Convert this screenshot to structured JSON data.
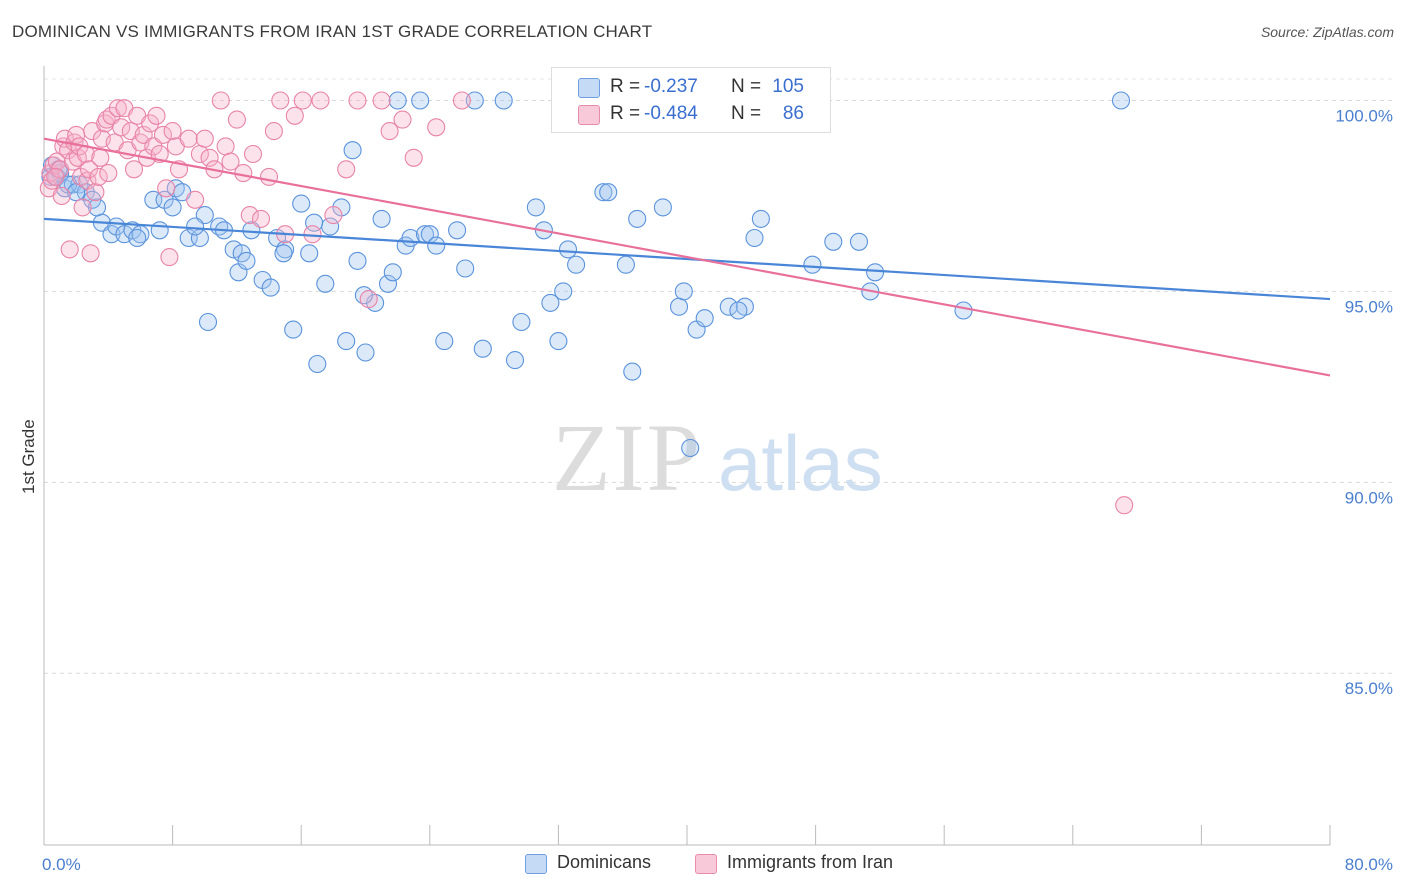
{
  "header": {
    "title": "DOMINICAN VS IMMIGRANTS FROM IRAN 1ST GRADE CORRELATION CHART",
    "source": "Source: ZipAtlas.com"
  },
  "watermark": {
    "zip": "ZIP",
    "atlas": "atlas"
  },
  "legend_top": {
    "rows": [
      {
        "r_label": "R =",
        "r_value": "-0.237",
        "n_label": "N =",
        "n_value": "105"
      },
      {
        "r_label": "R =",
        "r_value": "-0.484",
        "n_label": "N =",
        "n_value": "86"
      }
    ]
  },
  "legend_bottom": {
    "items": [
      "Dominicans",
      "Immigrants from Iran"
    ]
  },
  "chart_data": {
    "type": "scatter",
    "ylabel": "1st Grade",
    "xlim": [
      0,
      80
    ],
    "ylim": [
      80.5,
      100.8
    ],
    "x_tick_labels": [
      "0.0%",
      "80.0%"
    ],
    "y_ticks": [
      {
        "value": 100,
        "label": "100.0%"
      },
      {
        "value": 95,
        "label": "95.0%"
      },
      {
        "value": 90,
        "label": "90.0%"
      },
      {
        "value": 85,
        "label": "85.0%"
      }
    ],
    "grid": "horizontal-dashed",
    "colors": {
      "dominicans": "#4a86d8",
      "iran": "#e8709a"
    },
    "series": [
      {
        "name": "Dominicans",
        "color": "#4a86d8",
        "trend": {
          "x": [
            0,
            80
          ],
          "y": [
            96.9,
            94.8
          ]
        },
        "points": [
          [
            0.5,
            98.3
          ],
          [
            0.8,
            98.0
          ],
          [
            1.0,
            98.1
          ],
          [
            1.3,
            97.7
          ],
          [
            1.8,
            97.8
          ],
          [
            2.2,
            97.8
          ],
          [
            2.6,
            97.6
          ],
          [
            3.0,
            97.4
          ],
          [
            3.6,
            96.8
          ],
          [
            4.2,
            96.5
          ],
          [
            4.5,
            96.7
          ],
          [
            5.0,
            96.5
          ],
          [
            5.5,
            96.6
          ],
          [
            6.0,
            96.5
          ],
          [
            6.8,
            97.4
          ],
          [
            7.2,
            96.6
          ],
          [
            7.5,
            97.4
          ],
          [
            8.0,
            97.2
          ],
          [
            8.2,
            97.7
          ],
          [
            8.6,
            97.6
          ],
          [
            9.0,
            96.4
          ],
          [
            9.7,
            96.4
          ],
          [
            10.0,
            97.0
          ],
          [
            10.2,
            94.2
          ],
          [
            10.9,
            96.7
          ],
          [
            11.2,
            96.6
          ],
          [
            11.8,
            96.1
          ],
          [
            12.1,
            95.5
          ],
          [
            12.3,
            96.0
          ],
          [
            12.9,
            96.6
          ],
          [
            13.6,
            95.3
          ],
          [
            14.1,
            95.1
          ],
          [
            14.5,
            96.4
          ],
          [
            15.0,
            96.1
          ],
          [
            15.5,
            94.0
          ],
          [
            16.0,
            97.3
          ],
          [
            16.5,
            96.0
          ],
          [
            17.0,
            93.1
          ],
          [
            17.5,
            95.2
          ],
          [
            17.8,
            96.7
          ],
          [
            18.5,
            97.2
          ],
          [
            18.8,
            93.7
          ],
          [
            19.2,
            98.7
          ],
          [
            19.5,
            95.8
          ],
          [
            20.0,
            93.4
          ],
          [
            20.6,
            94.7
          ],
          [
            21.0,
            96.9
          ],
          [
            21.4,
            95.2
          ],
          [
            21.7,
            95.5
          ],
          [
            22.0,
            100.0
          ],
          [
            22.5,
            96.2
          ],
          [
            22.8,
            96.4
          ],
          [
            23.4,
            100.0
          ],
          [
            23.7,
            96.5
          ],
          [
            24.0,
            96.5
          ],
          [
            24.9,
            93.7
          ],
          [
            25.7,
            96.6
          ],
          [
            26.2,
            95.6
          ],
          [
            26.8,
            100.0
          ],
          [
            27.3,
            93.5
          ],
          [
            28.6,
            100.0
          ],
          [
            29.3,
            93.2
          ],
          [
            29.7,
            94.2
          ],
          [
            30.6,
            97.2
          ],
          [
            31.1,
            96.6
          ],
          [
            32.0,
            93.7
          ],
          [
            32.3,
            95.0
          ],
          [
            32.6,
            96.1
          ],
          [
            33.1,
            95.7
          ],
          [
            34.8,
            97.6
          ],
          [
            35.1,
            97.6
          ],
          [
            36.2,
            95.7
          ],
          [
            36.6,
            92.9
          ],
          [
            36.9,
            96.9
          ],
          [
            38.5,
            97.2
          ],
          [
            39.5,
            94.6
          ],
          [
            39.8,
            95.0
          ],
          [
            40.2,
            90.9
          ],
          [
            40.6,
            94.0
          ],
          [
            41.1,
            94.3
          ],
          [
            42.6,
            94.6
          ],
          [
            43.6,
            94.6
          ],
          [
            44.2,
            96.4
          ],
          [
            44.6,
            96.9
          ],
          [
            47.8,
            95.7
          ],
          [
            49.1,
            96.3
          ],
          [
            50.7,
            96.3
          ],
          [
            51.4,
            95.0
          ],
          [
            51.7,
            95.5
          ],
          [
            57.2,
            94.5
          ],
          [
            67.0,
            100.0
          ],
          [
            0.4,
            98.0
          ],
          [
            0.9,
            98.2
          ],
          [
            1.5,
            97.8
          ],
          [
            2.0,
            97.6
          ],
          [
            3.3,
            97.2
          ],
          [
            5.8,
            96.4
          ],
          [
            9.4,
            96.7
          ],
          [
            12.6,
            95.8
          ],
          [
            14.9,
            96.0
          ],
          [
            16.8,
            96.8
          ],
          [
            19.9,
            94.9
          ],
          [
            24.4,
            96.2
          ],
          [
            31.5,
            94.7
          ],
          [
            43.2,
            94.5
          ]
        ]
      },
      {
        "name": "Immigrants from Iran",
        "color": "#e8709a",
        "trend": {
          "x": [
            0,
            80
          ],
          "y": [
            99.0,
            92.8
          ]
        },
        "points": [
          [
            0.3,
            97.7
          ],
          [
            0.4,
            98.1
          ],
          [
            0.5,
            97.9
          ],
          [
            0.6,
            98.3
          ],
          [
            0.8,
            98.4
          ],
          [
            1.0,
            98.2
          ],
          [
            1.1,
            97.5
          ],
          [
            1.2,
            98.8
          ],
          [
            1.3,
            99.0
          ],
          [
            1.5,
            98.7
          ],
          [
            1.6,
            96.1
          ],
          [
            1.8,
            98.4
          ],
          [
            1.9,
            98.9
          ],
          [
            2.0,
            99.1
          ],
          [
            2.1,
            98.5
          ],
          [
            2.2,
            98.8
          ],
          [
            2.3,
            98.0
          ],
          [
            2.4,
            97.2
          ],
          [
            2.6,
            98.6
          ],
          [
            2.7,
            97.9
          ],
          [
            2.8,
            98.2
          ],
          [
            2.9,
            96.0
          ],
          [
            3.0,
            99.2
          ],
          [
            3.2,
            97.6
          ],
          [
            3.4,
            98.0
          ],
          [
            3.5,
            98.5
          ],
          [
            3.6,
            99.0
          ],
          [
            3.8,
            99.4
          ],
          [
            3.9,
            99.5
          ],
          [
            4.0,
            98.1
          ],
          [
            4.2,
            99.6
          ],
          [
            4.4,
            98.9
          ],
          [
            4.6,
            99.8
          ],
          [
            4.8,
            99.3
          ],
          [
            5.0,
            99.8
          ],
          [
            5.2,
            98.7
          ],
          [
            5.4,
            99.2
          ],
          [
            5.6,
            98.2
          ],
          [
            5.8,
            99.6
          ],
          [
            6.0,
            98.9
          ],
          [
            6.2,
            99.1
          ],
          [
            6.4,
            98.5
          ],
          [
            6.6,
            99.4
          ],
          [
            6.8,
            98.8
          ],
          [
            7.0,
            99.6
          ],
          [
            7.2,
            98.6
          ],
          [
            7.4,
            99.1
          ],
          [
            7.6,
            97.7
          ],
          [
            7.8,
            95.9
          ],
          [
            8.0,
            99.2
          ],
          [
            8.2,
            98.8
          ],
          [
            8.4,
            98.2
          ],
          [
            9.0,
            99.0
          ],
          [
            9.4,
            97.4
          ],
          [
            9.7,
            98.6
          ],
          [
            10.0,
            99.0
          ],
          [
            10.3,
            98.5
          ],
          [
            10.6,
            98.2
          ],
          [
            11.0,
            100.0
          ],
          [
            11.3,
            98.8
          ],
          [
            11.6,
            98.4
          ],
          [
            12.0,
            99.5
          ],
          [
            12.4,
            98.1
          ],
          [
            12.8,
            97.0
          ],
          [
            13.0,
            98.6
          ],
          [
            13.5,
            96.9
          ],
          [
            14.0,
            98.0
          ],
          [
            14.3,
            99.2
          ],
          [
            14.7,
            100.0
          ],
          [
            15.0,
            96.5
          ],
          [
            15.6,
            99.6
          ],
          [
            16.1,
            100.0
          ],
          [
            16.7,
            96.5
          ],
          [
            17.2,
            100.0
          ],
          [
            18.0,
            97.0
          ],
          [
            18.8,
            98.2
          ],
          [
            19.5,
            100.0
          ],
          [
            20.2,
            94.8
          ],
          [
            21.0,
            100.0
          ],
          [
            21.5,
            99.2
          ],
          [
            22.3,
            99.5
          ],
          [
            23.0,
            98.5
          ],
          [
            24.4,
            99.3
          ],
          [
            26.0,
            100.0
          ],
          [
            67.2,
            89.4
          ],
          [
            0.7,
            98.0
          ]
        ]
      }
    ]
  }
}
